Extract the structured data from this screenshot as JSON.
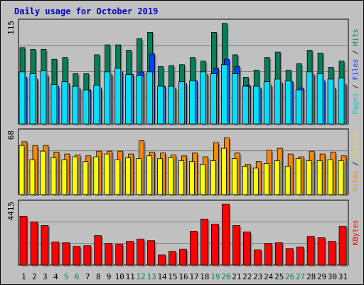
{
  "title": "Daily usage for October 2019",
  "colors": {
    "hits": "#00805c",
    "files": "#0040ff",
    "pages": "#00e0ff",
    "visits": "#ffff00",
    "sites": "#ff8800",
    "kbytes": "#ff0000",
    "weekend_label": "#00805c",
    "weekday_label": "#000000"
  },
  "chart_data": [
    {
      "type": "bar",
      "ytick_max": "115",
      "side_labels": [
        {
          "text": "Pages",
          "color": "#00c8d8"
        },
        {
          "text": " / ",
          "color": "#000000"
        },
        {
          "text": "Files",
          "color": "#0040ff"
        },
        {
          "text": " / ",
          "color": "#000000"
        },
        {
          "text": "Hits",
          "color": "#00805c"
        }
      ],
      "ylim": [
        0,
        115
      ],
      "series": [
        {
          "key": "hits",
          "values": [
            85,
            83,
            83,
            72,
            74,
            56,
            56,
            77,
            88,
            88,
            82,
            95,
            102,
            64,
            65,
            66,
            74,
            70,
            102,
            112,
            77,
            52,
            60,
            74,
            80,
            60,
            67,
            82,
            79,
            63,
            70
          ]
        },
        {
          "key": "files",
          "values": [
            52,
            50,
            54,
            42,
            45,
            40,
            38,
            40,
            55,
            58,
            55,
            58,
            78,
            42,
            40,
            45,
            48,
            55,
            62,
            72,
            64,
            43,
            40,
            43,
            46,
            47,
            40,
            55,
            48,
            40,
            44
          ]
        },
        {
          "key": "pages",
          "values": [
            58,
            56,
            59,
            44,
            47,
            42,
            38,
            43,
            58,
            62,
            55,
            54,
            58,
            42,
            42,
            47,
            48,
            58,
            56,
            66,
            56,
            42,
            42,
            47,
            50,
            48,
            38,
            58,
            56,
            50,
            51
          ]
        }
      ]
    },
    {
      "type": "bar",
      "ytick_max": "68",
      "side_labels": [
        {
          "text": "Sites",
          "color": "#ff8800"
        },
        {
          "text": " / ",
          "color": "#000000"
        },
        {
          "text": "Visits",
          "color": "#e0e000"
        }
      ],
      "ylim": [
        0,
        68
      ],
      "series": [
        {
          "key": "visits",
          "values": [
            52,
            37,
            46,
            39,
            37,
            40,
            35,
            40,
            43,
            37,
            39,
            38,
            41,
            38,
            39,
            36,
            35,
            32,
            36,
            49,
            38,
            30,
            28,
            33,
            36,
            30,
            38,
            36,
            36,
            37,
            36
          ]
        },
        {
          "key": "sites",
          "values": [
            56,
            52,
            52,
            45,
            43,
            42,
            41,
            46,
            46,
            46,
            43,
            57,
            45,
            44,
            42,
            41,
            44,
            40,
            55,
            60,
            44,
            32,
            35,
            47,
            49,
            43,
            40,
            46,
            43,
            45,
            41
          ]
        }
      ]
    },
    {
      "type": "bar",
      "ytick_max": "4415",
      "side_labels": [
        {
          "text": "KBytes",
          "color": "#ff0000"
        }
      ],
      "ylim": [
        0,
        4415
      ],
      "series": [
        {
          "key": "kbytes",
          "values": [
            3400,
            3000,
            2750,
            1600,
            1550,
            1300,
            1350,
            2050,
            1500,
            1450,
            1650,
            1800,
            1700,
            700,
            950,
            1100,
            2350,
            3200,
            2850,
            4250,
            2750,
            2300,
            1050,
            1500,
            1550,
            1150,
            1250,
            2000,
            1900,
            1650,
            2700
          ]
        }
      ]
    }
  ],
  "x_labels": [
    "1",
    "2",
    "3",
    "4",
    "5",
    "6",
    "7",
    "8",
    "9",
    "10",
    "11",
    "12",
    "13",
    "14",
    "15",
    "16",
    "17",
    "18",
    "19",
    "20",
    "21",
    "22",
    "23",
    "24",
    "25",
    "26",
    "27",
    "28",
    "29",
    "30",
    "31"
  ],
  "weekend_days": [
    5,
    6,
    12,
    13,
    19,
    20,
    26,
    27
  ]
}
